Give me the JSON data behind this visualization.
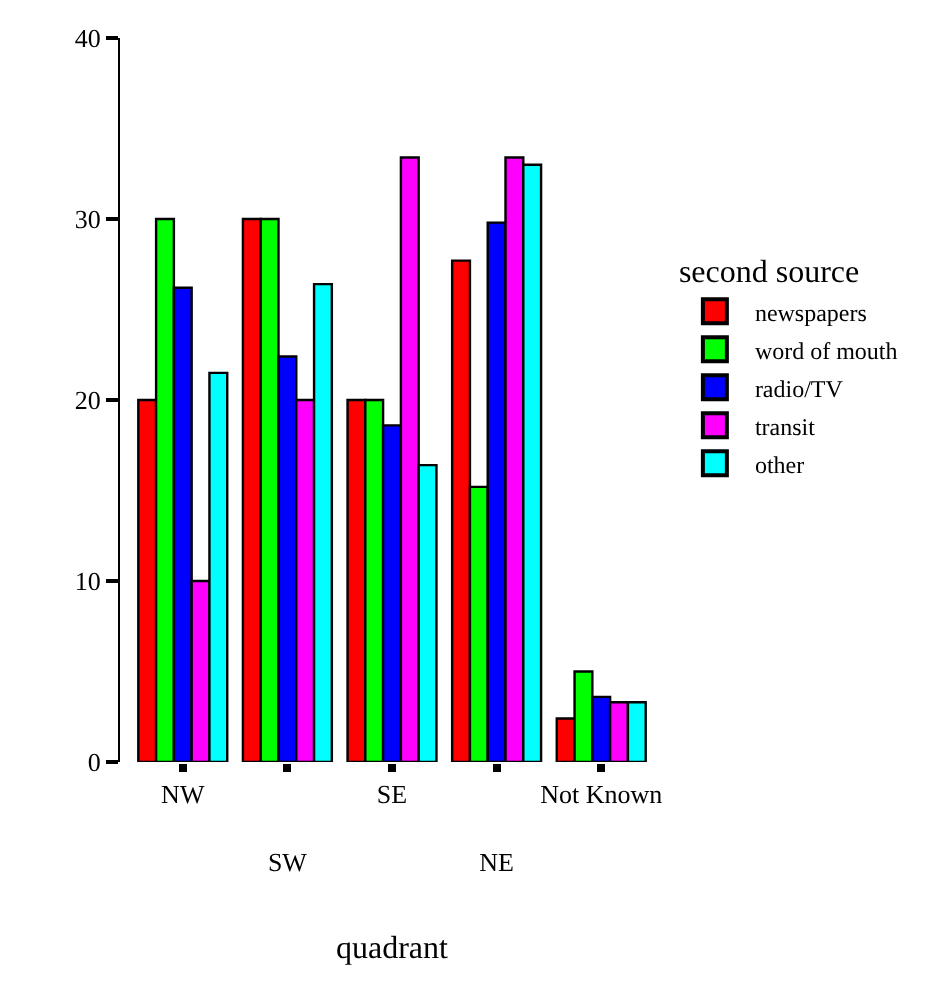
{
  "chart_data": {
    "type": "bar",
    "xlabel": "quadrant",
    "legend_title": "second source",
    "legend": "right",
    "categories": [
      "NW",
      "SW",
      "SE",
      "NE",
      "Not Known"
    ],
    "series": [
      {
        "name": "newspapers",
        "color": "#ff0000",
        "values": [
          20,
          30,
          20,
          27.7,
          2.4
        ]
      },
      {
        "name": "word of mouth",
        "color": "#00ff00",
        "values": [
          30,
          30,
          20,
          15.2,
          5.0
        ]
      },
      {
        "name": "radio/TV",
        "color": "#0000ff",
        "values": [
          26.2,
          22.4,
          18.6,
          29.8,
          3.6
        ]
      },
      {
        "name": "transit",
        "color": "#ff00ff",
        "values": [
          10,
          20,
          33.4,
          33.4,
          3.3
        ]
      },
      {
        "name": "other",
        "color": "#00ffff",
        "values": [
          21.5,
          26.4,
          16.4,
          33.0,
          3.3
        ]
      }
    ],
    "ylim": [
      0,
      40
    ],
    "yticks": [
      0,
      10,
      20,
      30,
      40
    ]
  }
}
